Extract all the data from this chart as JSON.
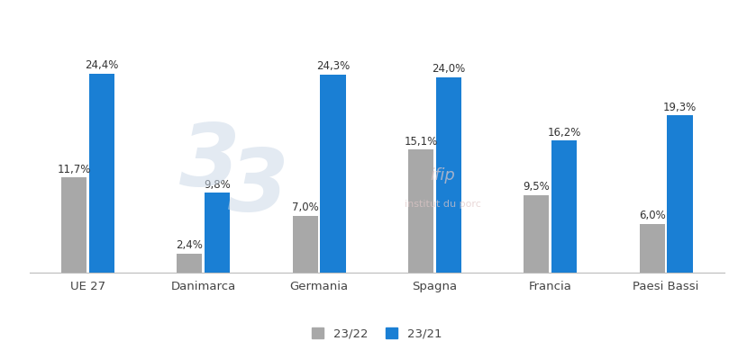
{
  "categories": [
    "UE 27",
    "Danimarca",
    "Germania",
    "Spagna",
    "Francia",
    "Paesi Bassi"
  ],
  "series_2322": [
    11.7,
    2.4,
    7.0,
    15.1,
    9.5,
    6.0
  ],
  "series_2321": [
    24.4,
    9.8,
    24.3,
    24.0,
    16.2,
    19.3
  ],
  "labels_2322": [
    "11,7%",
    "2,4%",
    "7,0%",
    "15,1%",
    "9,5%",
    "6,0%"
  ],
  "labels_2321": [
    "24,4%",
    "9,8%",
    "24,3%",
    "24,0%",
    "16,2%",
    "19,3%"
  ],
  "color_2322": "#a8a8a8",
  "color_2321": "#1a7fd4",
  "legend_2322": "23/22",
  "legend_2321": "23/21",
  "bar_width": 0.22,
  "ylim": [
    0,
    30
  ],
  "background_color": "#ffffff",
  "label_fontsize": 8.5,
  "tick_fontsize": 9.5,
  "legend_fontsize": 9.5
}
